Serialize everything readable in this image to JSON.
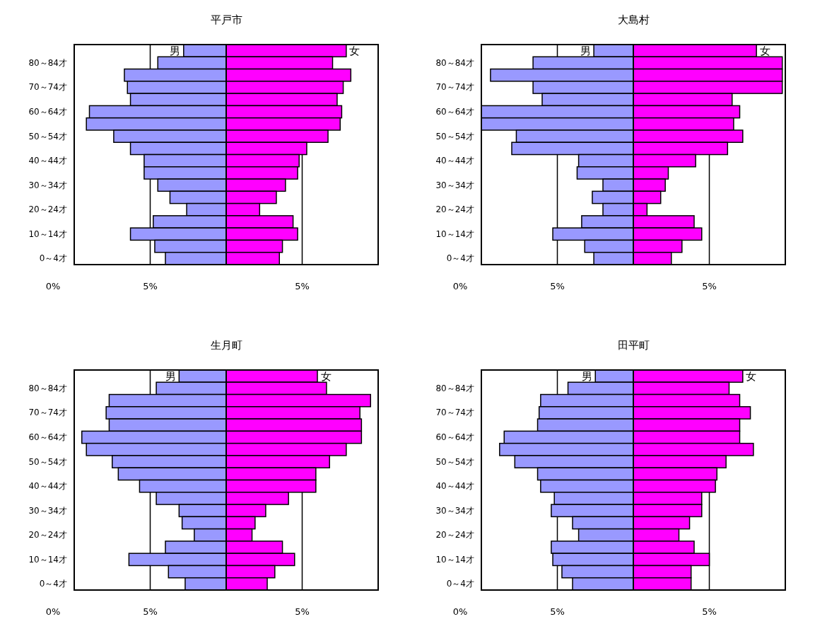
{
  "chart_data": [
    {
      "type": "bar",
      "orientation": "horizontal",
      "stacked": true,
      "title": "平戸市",
      "categories": [
        null,
        "80～84才",
        null,
        "70～74才",
        null,
        "60～64才",
        null,
        "50～54才",
        null,
        "40～44才",
        null,
        "30～34才",
        null,
        "20～24才",
        null,
        "10～14才",
        null,
        "0～4才"
      ],
      "series": [
        {
          "name": "男",
          "color": "#9999ff",
          "values": [
            -2.8,
            -4.5,
            -6.7,
            -6.5,
            -6.3,
            -9.0,
            -9.2,
            -7.4,
            -6.3,
            -5.4,
            -5.4,
            -4.5,
            -3.7,
            -2.6,
            -4.8,
            -6.3,
            -4.7,
            -4.0
          ]
        },
        {
          "name": "女",
          "color": "#ff00ff",
          "values": [
            7.9,
            7.0,
            8.2,
            7.7,
            7.3,
            7.6,
            7.5,
            6.7,
            5.3,
            4.8,
            4.7,
            3.9,
            3.3,
            2.2,
            4.4,
            4.7,
            3.7,
            3.5
          ]
        }
      ],
      "xlim": [
        -10,
        10
      ],
      "xticks": [
        {
          "value": -5,
          "label": "5%"
        },
        {
          "value": 0,
          "label": null
        },
        {
          "value": 5,
          "label": "5%"
        }
      ],
      "grid": "x",
      "annotations": [
        "0%"
      ]
    },
    {
      "type": "bar",
      "orientation": "horizontal",
      "stacked": true,
      "title": "大島村",
      "categories": [
        null,
        "80～84才",
        null,
        "70～74才",
        null,
        "60～64才",
        null,
        "50～54才",
        null,
        "40～44才",
        null,
        "30～34才",
        null,
        "20～24才",
        null,
        "10～14才",
        null,
        "0～4才"
      ],
      "series": [
        {
          "name": "男",
          "color": "#9999ff",
          "values": [
            -2.6,
            -6.6,
            -9.4,
            -6.6,
            -6.0,
            -10,
            -10,
            -7.7,
            -8.0,
            -3.6,
            -3.7,
            -2.0,
            -2.7,
            -2.0,
            -3.4,
            -5.3,
            -3.2,
            -2.6
          ]
        },
        {
          "name": "女",
          "color": "#ff00ff",
          "values": [
            8.1,
            9.8,
            9.8,
            9.8,
            6.5,
            7.0,
            6.6,
            7.2,
            6.2,
            4.1,
            2.3,
            2.1,
            1.8,
            0.9,
            4.0,
            4.5,
            3.2,
            2.5
          ]
        }
      ],
      "xlim": [
        -10,
        10
      ],
      "xticks": [
        {
          "value": -5,
          "label": "5%"
        },
        {
          "value": 0,
          "label": null
        },
        {
          "value": 5,
          "label": "5%"
        }
      ],
      "grid": "x",
      "annotations": [
        "0%"
      ]
    },
    {
      "type": "bar",
      "orientation": "horizontal",
      "stacked": true,
      "title": "生月町",
      "categories": [
        null,
        "80～84才",
        null,
        "70～74才",
        null,
        "60～64才",
        null,
        "50～54才",
        null,
        "40～44才",
        null,
        "30～34才",
        null,
        "20～24才",
        null,
        "10～14才",
        null,
        "0～4才"
      ],
      "series": [
        {
          "name": "男",
          "color": "#9999ff",
          "values": [
            -3.1,
            -4.6,
            -7.7,
            -7.9,
            -7.7,
            -9.5,
            -9.2,
            -7.5,
            -7.1,
            -5.7,
            -4.6,
            -3.1,
            -2.9,
            -2.1,
            -4.0,
            -6.4,
            -3.8,
            -2.7
          ]
        },
        {
          "name": "女",
          "color": "#ff00ff",
          "values": [
            6.0,
            6.6,
            9.5,
            8.8,
            8.9,
            8.9,
            7.9,
            6.8,
            5.9,
            5.9,
            4.1,
            2.6,
            1.9,
            1.7,
            3.7,
            4.5,
            3.2,
            2.7
          ]
        }
      ],
      "xlim": [
        -10,
        10
      ],
      "xticks": [
        {
          "value": -5,
          "label": "5%"
        },
        {
          "value": 0,
          "label": null
        },
        {
          "value": 5,
          "label": "5%"
        }
      ],
      "grid": "x",
      "annotations": [
        "0%"
      ]
    },
    {
      "type": "bar",
      "orientation": "horizontal",
      "stacked": true,
      "title": "田平町",
      "categories": [
        null,
        "80～84才",
        null,
        "70～74才",
        null,
        "60～64才",
        null,
        "50～54才",
        null,
        "40～44才",
        null,
        "30～34才",
        null,
        "20～24才",
        null,
        "10～14才",
        null,
        "0～4才"
      ],
      "series": [
        {
          "name": "男",
          "color": "#9999ff",
          "values": [
            -2.5,
            -4.3,
            -6.1,
            -6.2,
            -6.3,
            -8.5,
            -8.8,
            -7.8,
            -6.3,
            -6.1,
            -5.2,
            -5.4,
            -4.0,
            -3.6,
            -5.4,
            -5.3,
            -4.7,
            -4.0
          ]
        },
        {
          "name": "女",
          "color": "#ff00ff",
          "values": [
            7.2,
            6.3,
            7.0,
            7.7,
            7.0,
            7.0,
            7.9,
            6.1,
            5.5,
            5.4,
            4.5,
            4.5,
            3.7,
            3.0,
            4.0,
            5.0,
            3.8,
            3.8
          ]
        }
      ],
      "xlim": [
        -10,
        10
      ],
      "xticks": [
        {
          "value": -5,
          "label": "5%"
        },
        {
          "value": 0,
          "label": null
        },
        {
          "value": 5,
          "label": "5%"
        }
      ],
      "grid": "x",
      "annotations": [
        "0%"
      ]
    }
  ]
}
